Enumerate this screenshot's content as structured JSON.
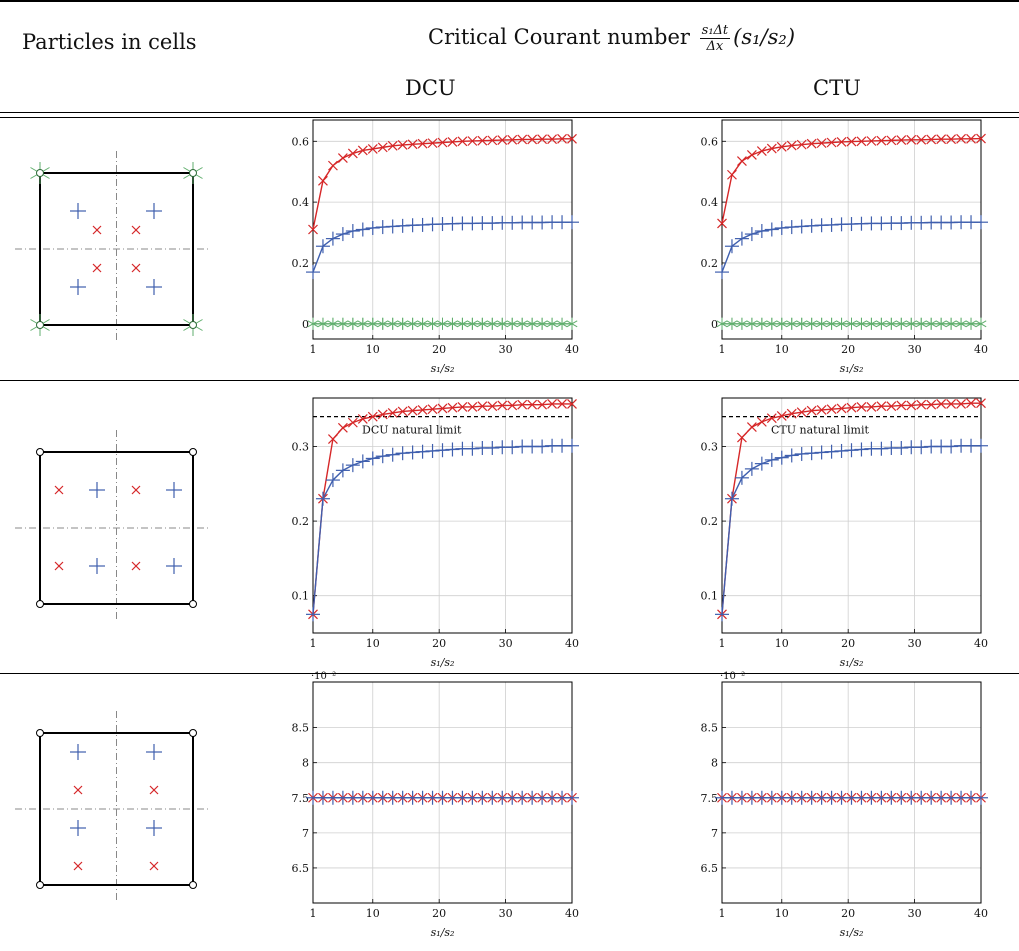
{
  "header": {
    "col1": "Particles in cells",
    "col2": "Critical Courant number",
    "frac_num": "s₁Δt",
    "frac_den": "Δx",
    "ratio": "(s₁/s₂)",
    "sub_dcu": "DCU",
    "sub_ctu": "CTU"
  },
  "legend_symbols": {
    "red": "#d62728",
    "blue": "#3f5fae",
    "green": "#5fae6c",
    "cell_line": "#000000",
    "axis_dash": "#888888"
  },
  "chart_data": [
    {
      "type": "line",
      "panel": "row1-DCU",
      "xlabel": "s₁/s₂",
      "ylabel": "",
      "xlim": [
        1,
        40
      ],
      "ylim": [
        -0.05,
        0.67
      ],
      "grid": true,
      "xticks": [
        "1",
        "10",
        "20",
        "30",
        "40"
      ],
      "yticks": [
        "0",
        "0.2",
        "0.4",
        "0.6"
      ],
      "x": [
        1,
        2.5,
        4,
        5.5,
        7,
        8.5,
        10,
        11.5,
        13,
        14.5,
        16,
        17.5,
        19,
        20.5,
        22,
        23.5,
        25,
        26.5,
        28,
        29.5,
        31,
        32.5,
        34,
        35.5,
        37,
        38.5,
        40
      ],
      "series": [
        {
          "color": "#d62728",
          "marker": "x",
          "values": [
            0.31,
            0.47,
            0.52,
            0.545,
            0.56,
            0.57,
            0.575,
            0.58,
            0.585,
            0.588,
            0.59,
            0.592,
            0.594,
            0.596,
            0.598,
            0.6,
            0.601,
            0.602,
            0.603,
            0.604,
            0.605,
            0.606,
            0.606,
            0.607,
            0.607,
            0.608,
            0.608
          ]
        },
        {
          "color": "#3f5fae",
          "marker": "+",
          "values": [
            0.17,
            0.255,
            0.28,
            0.295,
            0.305,
            0.31,
            0.315,
            0.318,
            0.32,
            0.322,
            0.324,
            0.325,
            0.327,
            0.328,
            0.329,
            0.33,
            0.33,
            0.331,
            0.331,
            0.332,
            0.332,
            0.333,
            0.333,
            0.333,
            0.334,
            0.334,
            0.334
          ]
        },
        {
          "color": "#5fae6c",
          "marker": "star",
          "values": [
            0,
            0,
            0,
            0,
            0,
            0,
            0,
            0,
            0,
            0,
            0,
            0,
            0,
            0,
            0,
            0,
            0,
            0,
            0,
            0,
            0,
            0,
            0,
            0,
            0,
            0,
            0
          ]
        }
      ]
    },
    {
      "type": "line",
      "panel": "row1-CTU",
      "xlabel": "s₁/s₂",
      "ylabel": "",
      "xlim": [
        1,
        40
      ],
      "ylim": [
        -0.05,
        0.67
      ],
      "grid": true,
      "xticks": [
        "1",
        "10",
        "20",
        "30",
        "40"
      ],
      "yticks": [
        "0",
        "0.2",
        "0.4",
        "0.6"
      ],
      "x": [
        1,
        2.5,
        4,
        5.5,
        7,
        8.5,
        10,
        11.5,
        13,
        14.5,
        16,
        17.5,
        19,
        20.5,
        22,
        23.5,
        25,
        26.5,
        28,
        29.5,
        31,
        32.5,
        34,
        35.5,
        37,
        38.5,
        40
      ],
      "series": [
        {
          "color": "#d62728",
          "marker": "x",
          "values": [
            0.33,
            0.49,
            0.535,
            0.555,
            0.568,
            0.576,
            0.582,
            0.586,
            0.589,
            0.592,
            0.594,
            0.596,
            0.598,
            0.599,
            0.6,
            0.601,
            0.602,
            0.603,
            0.604,
            0.605,
            0.605,
            0.606,
            0.607,
            0.607,
            0.608,
            0.608,
            0.609
          ]
        },
        {
          "color": "#3f5fae",
          "marker": "+",
          "values": [
            0.17,
            0.255,
            0.28,
            0.295,
            0.305,
            0.31,
            0.315,
            0.318,
            0.32,
            0.322,
            0.324,
            0.325,
            0.327,
            0.328,
            0.329,
            0.33,
            0.33,
            0.331,
            0.331,
            0.332,
            0.332,
            0.333,
            0.333,
            0.333,
            0.334,
            0.334,
            0.334
          ]
        },
        {
          "color": "#5fae6c",
          "marker": "star",
          "values": [
            0,
            0,
            0,
            0,
            0,
            0,
            0,
            0,
            0,
            0,
            0,
            0,
            0,
            0,
            0,
            0,
            0,
            0,
            0,
            0,
            0,
            0,
            0,
            0,
            0,
            0,
            0
          ]
        }
      ]
    },
    {
      "type": "line",
      "panel": "row2-DCU",
      "xlabel": "s₁/s₂",
      "ylabel": "",
      "xlim": [
        1,
        40
      ],
      "ylim": [
        0.05,
        0.365
      ],
      "grid": true,
      "xticks": [
        "1",
        "10",
        "20",
        "30",
        "40"
      ],
      "yticks": [
        "0.1",
        "0.2",
        "0.3"
      ],
      "annotation": {
        "text": "DCU natural limit",
        "y": 0.34
      },
      "x": [
        1,
        2.5,
        4,
        5.5,
        7,
        8.5,
        10,
        11.5,
        13,
        14.5,
        16,
        17.5,
        19,
        20.5,
        22,
        23.5,
        25,
        26.5,
        28,
        29.5,
        31,
        32.5,
        34,
        35.5,
        37,
        38.5,
        40
      ],
      "series": [
        {
          "color": "#d62728",
          "marker": "x",
          "values": [
            0.075,
            0.23,
            0.31,
            0.325,
            0.332,
            0.337,
            0.34,
            0.343,
            0.345,
            0.347,
            0.348,
            0.349,
            0.35,
            0.351,
            0.352,
            0.353,
            0.353,
            0.354,
            0.354,
            0.355,
            0.355,
            0.356,
            0.356,
            0.356,
            0.357,
            0.357,
            0.357
          ]
        },
        {
          "color": "#3f5fae",
          "marker": "+",
          "values": [
            0.075,
            0.23,
            0.255,
            0.268,
            0.275,
            0.28,
            0.284,
            0.287,
            0.289,
            0.291,
            0.292,
            0.293,
            0.294,
            0.295,
            0.296,
            0.297,
            0.297,
            0.298,
            0.298,
            0.299,
            0.299,
            0.3,
            0.3,
            0.3,
            0.301,
            0.301,
            0.301
          ]
        }
      ]
    },
    {
      "type": "line",
      "panel": "row2-CTU",
      "xlabel": "s₁/s₂",
      "ylabel": "",
      "xlim": [
        1,
        40
      ],
      "ylim": [
        0.05,
        0.365
      ],
      "grid": true,
      "xticks": [
        "1",
        "10",
        "20",
        "30",
        "40"
      ],
      "yticks": [
        "0.1",
        "0.2",
        "0.3"
      ],
      "annotation": {
        "text": "CTU natural limit",
        "y": 0.34
      },
      "x": [
        1,
        2.5,
        4,
        5.5,
        7,
        8.5,
        10,
        11.5,
        13,
        14.5,
        16,
        17.5,
        19,
        20.5,
        22,
        23.5,
        25,
        26.5,
        28,
        29.5,
        31,
        32.5,
        34,
        35.5,
        37,
        38.5,
        40
      ],
      "series": [
        {
          "color": "#d62728",
          "marker": "x",
          "values": [
            0.075,
            0.23,
            0.312,
            0.326,
            0.333,
            0.338,
            0.341,
            0.344,
            0.346,
            0.348,
            0.349,
            0.35,
            0.351,
            0.352,
            0.353,
            0.353,
            0.354,
            0.354,
            0.355,
            0.355,
            0.356,
            0.356,
            0.357,
            0.357,
            0.357,
            0.358,
            0.358
          ]
        },
        {
          "color": "#3f5fae",
          "marker": "+",
          "values": [
            0.075,
            0.23,
            0.258,
            0.27,
            0.277,
            0.282,
            0.285,
            0.288,
            0.29,
            0.291,
            0.292,
            0.293,
            0.294,
            0.295,
            0.296,
            0.297,
            0.297,
            0.298,
            0.298,
            0.299,
            0.299,
            0.3,
            0.3,
            0.3,
            0.301,
            0.301,
            0.301
          ]
        }
      ]
    },
    {
      "type": "line",
      "panel": "row3-DCU",
      "xlabel": "s₁/s₂",
      "ylabel": "",
      "xlim": [
        1,
        40
      ],
      "ylim": [
        6.0,
        9.15
      ],
      "grid": true,
      "scale_label": "·10⁻²",
      "xticks": [
        "1",
        "10",
        "20",
        "30",
        "40"
      ],
      "yticks": [
        "6.5",
        "7",
        "7.5",
        "8",
        "8.5"
      ],
      "x": [
        1,
        2.5,
        4,
        5.5,
        7,
        8.5,
        10,
        11.5,
        13,
        14.5,
        16,
        17.5,
        19,
        20.5,
        22,
        23.5,
        25,
        26.5,
        28,
        29.5,
        31,
        32.5,
        34,
        35.5,
        37,
        38.5,
        40
      ],
      "series": [
        {
          "color": "#d62728",
          "marker": "x",
          "values": [
            7.5,
            7.5,
            7.5,
            7.5,
            7.5,
            7.5,
            7.5,
            7.5,
            7.5,
            7.5,
            7.5,
            7.5,
            7.5,
            7.5,
            7.5,
            7.5,
            7.5,
            7.5,
            7.5,
            7.5,
            7.5,
            7.5,
            7.5,
            7.5,
            7.5,
            7.5,
            7.5
          ]
        },
        {
          "color": "#3f5fae",
          "marker": "+",
          "values": [
            7.5,
            7.5,
            7.5,
            7.5,
            7.5,
            7.5,
            7.5,
            7.5,
            7.5,
            7.5,
            7.5,
            7.5,
            7.5,
            7.5,
            7.5,
            7.5,
            7.5,
            7.5,
            7.5,
            7.5,
            7.5,
            7.5,
            7.5,
            7.5,
            7.5,
            7.5,
            7.5
          ]
        }
      ]
    },
    {
      "type": "line",
      "panel": "row3-CTU",
      "xlabel": "s₁/s₂",
      "ylabel": "",
      "xlim": [
        1,
        40
      ],
      "ylim": [
        6.0,
        9.15
      ],
      "grid": true,
      "scale_label": "·10⁻²",
      "xticks": [
        "1",
        "10",
        "20",
        "30",
        "40"
      ],
      "yticks": [
        "6.5",
        "7",
        "7.5",
        "8",
        "8.5"
      ],
      "x": [
        1,
        2.5,
        4,
        5.5,
        7,
        8.5,
        10,
        11.5,
        13,
        14.5,
        16,
        17.5,
        19,
        20.5,
        22,
        23.5,
        25,
        26.5,
        28,
        29.5,
        31,
        32.5,
        34,
        35.5,
        37,
        38.5,
        40
      ],
      "series": [
        {
          "color": "#d62728",
          "marker": "x",
          "values": [
            7.5,
            7.5,
            7.5,
            7.5,
            7.5,
            7.5,
            7.5,
            7.5,
            7.5,
            7.5,
            7.5,
            7.5,
            7.5,
            7.5,
            7.5,
            7.5,
            7.5,
            7.5,
            7.5,
            7.5,
            7.5,
            7.5,
            7.5,
            7.5,
            7.5,
            7.5,
            7.5
          ]
        },
        {
          "color": "#3f5fae",
          "marker": "+",
          "values": [
            7.5,
            7.5,
            7.5,
            7.5,
            7.5,
            7.5,
            7.5,
            7.5,
            7.5,
            7.5,
            7.5,
            7.5,
            7.5,
            7.5,
            7.5,
            7.5,
            7.5,
            7.5,
            7.5,
            7.5,
            7.5,
            7.5,
            7.5,
            7.5,
            7.5,
            7.5,
            7.5
          ]
        }
      ]
    }
  ]
}
